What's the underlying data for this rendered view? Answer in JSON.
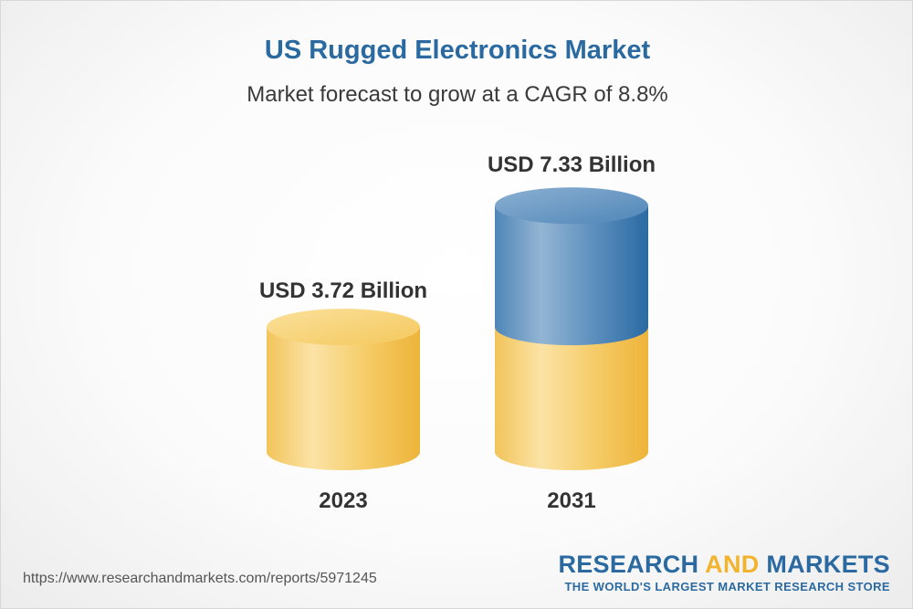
{
  "page": {
    "title": "US Rugged Electronics Market",
    "subtitle": "Market forecast to grow at a CAGR of 8.8%"
  },
  "footer": {
    "url": "https://www.researchandmarkets.com/reports/5971245",
    "logo_word1": "RESEARCH",
    "logo_word2": "AND",
    "logo_word3": "MARKETS",
    "logo_tagline": "THE WORLD'S LARGEST MARKET RESEARCH STORE"
  },
  "colors": {
    "title": "#2a6aa1",
    "base_cylinder": "#f2c45a",
    "growth_cylinder": "#4f86b8",
    "logo_accent": "#f2b42f"
  },
  "chart_data": {
    "type": "bar",
    "style": "3d-cylinder",
    "categories": [
      "2023",
      "2031"
    ],
    "values": [
      3.72,
      7.33
    ],
    "value_labels": [
      "USD 3.72 Billion",
      "USD 7.33 Billion"
    ],
    "unit": "USD Billion",
    "cagr": "8.8%",
    "segments_2031": {
      "base": 3.72,
      "growth": 3.61
    }
  }
}
